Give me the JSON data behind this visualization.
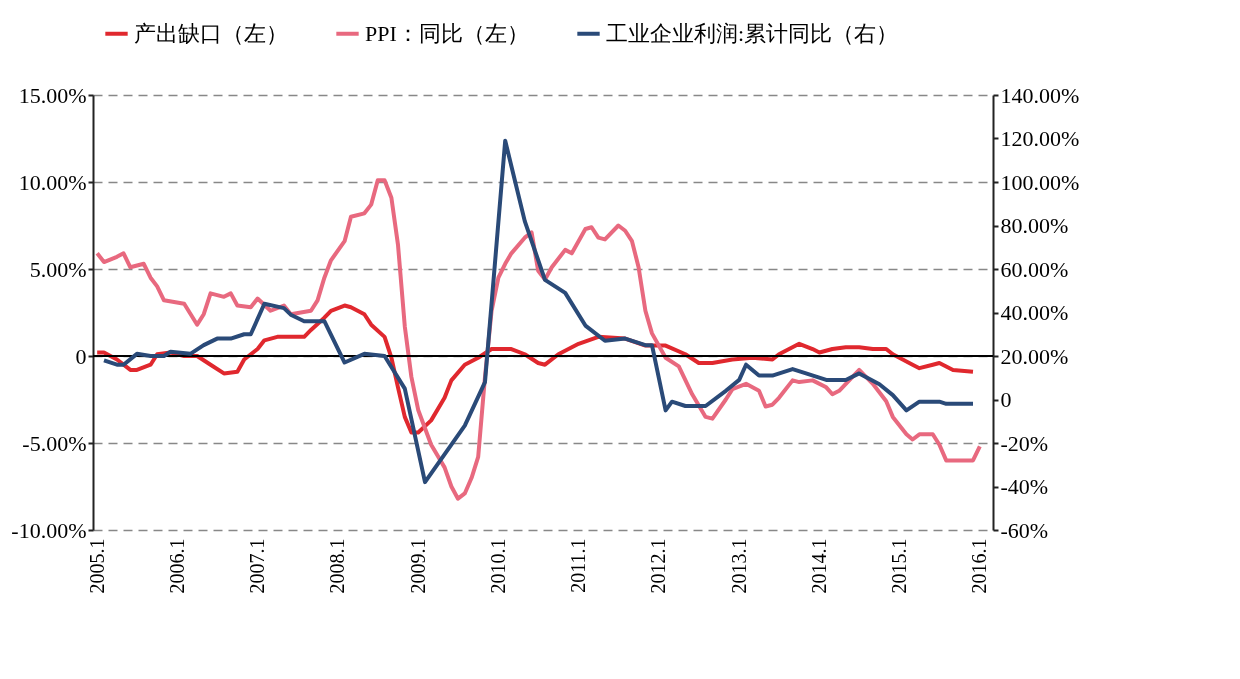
{
  "chart_data": {
    "type": "line",
    "xlim": [
      "2004-12-13",
      "2016-03-01"
    ],
    "xticks": [
      {
        "value": "2005-01",
        "label": "2005.1"
      },
      {
        "value": "2006-01",
        "label": "2006.1"
      },
      {
        "value": "2007-01",
        "label": "2007.1"
      },
      {
        "value": "2008-01",
        "label": "2008.1"
      },
      {
        "value": "2009-01",
        "label": "2009.1"
      },
      {
        "value": "2010-01",
        "label": "2010.1"
      },
      {
        "value": "2011-01",
        "label": "2011.1"
      },
      {
        "value": "2012-01",
        "label": "2012.1"
      },
      {
        "value": "2013-01",
        "label": "2013.1"
      },
      {
        "value": "2014-01",
        "label": "2014.1"
      },
      {
        "value": "2015-01",
        "label": "2015.1"
      },
      {
        "value": "2016-01",
        "label": "2016.1"
      }
    ],
    "ylim": [
      -10,
      15
    ],
    "yticks": [
      {
        "value": -10,
        "label": "-10.00%"
      },
      {
        "value": -5,
        "label": "-5.00%"
      },
      0,
      {
        "value": 5,
        "label": "5.00%"
      },
      {
        "value": 10,
        "label": "10.00%"
      },
      {
        "value": 15,
        "label": "15.00%"
      }
    ],
    "y2lim": [
      -60,
      140
    ],
    "y2ticks": [
      {
        "value": -60,
        "label": "-60%"
      },
      {
        "value": -40,
        "label": "-40%"
      },
      {
        "value": -20,
        "label": "-20%"
      },
      0,
      {
        "value": 20,
        "label": "20.00%"
      },
      {
        "value": 40,
        "label": "40.00%"
      },
      {
        "value": 60,
        "label": "60.00%"
      },
      {
        "value": 80,
        "label": "80.00%"
      },
      {
        "value": 100,
        "label": "100.00%"
      },
      {
        "value": 120,
        "label": "120.00%"
      },
      {
        "value": 140,
        "label": "140.00%"
      }
    ],
    "grid": "y",
    "legend": "top",
    "ref_lines": [
      {
        "axis": "y",
        "value": 0,
        "color": "#000000"
      }
    ],
    "series": [
      {
        "name": "产出缺口（左）",
        "color": "#e0282e",
        "x": [
          "2005-01",
          "2005-02",
          "2005-04",
          "2005-06",
          "2005-07",
          "2005-09",
          "2005-10",
          "2005-12",
          "2006-02",
          "2006-04",
          "2006-06",
          "2006-08",
          "2006-10",
          "2006-11",
          "2007-01",
          "2007-02",
          "2007-04",
          "2007-07",
          "2007-08",
          "2007-09",
          "2007-11",
          "2007-12",
          "2008-02",
          "2008-03",
          "2008-05",
          "2008-06",
          "2008-08",
          "2008-09",
          "2008-10",
          "2008-11",
          "2008-12",
          "2009-01",
          "2009-03",
          "2009-05",
          "2009-06",
          "2009-08",
          "2009-10",
          "2009-12",
          "2010-03",
          "2010-05",
          "2010-07",
          "2010-08",
          "2010-10",
          "2011-01",
          "2011-04",
          "2011-08",
          "2011-11",
          "2012-02",
          "2012-05",
          "2012-07",
          "2012-09",
          "2012-12",
          "2013-03",
          "2013-06",
          "2013-07",
          "2013-10",
          "2013-12",
          "2014-01",
          "2014-03",
          "2014-05",
          "2014-07",
          "2014-09",
          "2014-11",
          "2014-12",
          "2015-03",
          "2015-04",
          "2015-06",
          "2015-07",
          "2015-09",
          "2015-12"
        ],
        "values": [
          0.2,
          0.2,
          -0.2,
          -0.8,
          -0.8,
          -0.5,
          0.1,
          0.2,
          0.0,
          0.0,
          -0.5,
          -1.0,
          -0.9,
          -0.2,
          0.4,
          0.9,
          1.1,
          1.1,
          1.1,
          1.5,
          2.2,
          2.6,
          2.9,
          2.8,
          2.4,
          1.8,
          1.1,
          -0.1,
          -1.8,
          -3.5,
          -4.4,
          -4.4,
          -3.7,
          -2.4,
          -1.4,
          -0.5,
          -0.1,
          0.4,
          0.4,
          0.1,
          -0.4,
          -0.5,
          0.1,
          0.7,
          1.1,
          1.0,
          0.6,
          0.6,
          0.1,
          -0.4,
          -0.4,
          -0.2,
          -0.1,
          -0.2,
          0.1,
          0.7,
          0.4,
          0.2,
          0.4,
          0.5,
          0.5,
          0.4,
          0.4,
          0.1,
          -0.5,
          -0.7,
          -0.5,
          -0.4,
          -0.8,
          -0.9
        ]
      },
      {
        "name": "PPI：同比（左）",
        "color": "#e8697f",
        "x": [
          "2005-01",
          "2005-02",
          "2005-04",
          "2005-05",
          "2005-06",
          "2005-08",
          "2005-09",
          "2005-10",
          "2005-11",
          "2006-02",
          "2006-04",
          "2006-05",
          "2006-06",
          "2006-08",
          "2006-09",
          "2006-10",
          "2006-12",
          "2007-01",
          "2007-03",
          "2007-05",
          "2007-06",
          "2007-09",
          "2007-10",
          "2007-11",
          "2007-12",
          "2008-02",
          "2008-03",
          "2008-05",
          "2008-06",
          "2008-07",
          "2008-08",
          "2008-09",
          "2008-10",
          "2008-11",
          "2008-12",
          "2009-01",
          "2009-03",
          "2009-05",
          "2009-06",
          "2009-07",
          "2009-08",
          "2009-09",
          "2009-10",
          "2009-11",
          "2009-12",
          "2010-01",
          "2010-02",
          "2010-03",
          "2010-05",
          "2010-06",
          "2010-07",
          "2010-08",
          "2010-09",
          "2010-11",
          "2010-12",
          "2011-02",
          "2011-03",
          "2011-04",
          "2011-05",
          "2011-07",
          "2011-08",
          "2011-09",
          "2011-10",
          "2011-11",
          "2011-12",
          "2012-02",
          "2012-04",
          "2012-06",
          "2012-08",
          "2012-09",
          "2012-11",
          "2012-12",
          "2013-02",
          "2013-04",
          "2013-05",
          "2013-06",
          "2013-07",
          "2013-09",
          "2013-10",
          "2013-12",
          "2014-02",
          "2014-03",
          "2014-04",
          "2014-07",
          "2014-09",
          "2014-11",
          "2014-12",
          "2015-02",
          "2015-03",
          "2015-04",
          "2015-06",
          "2015-07",
          "2015-08",
          "2015-12",
          "2016-01"
        ],
        "values": [
          5.9,
          5.4,
          5.7,
          5.9,
          5.1,
          5.3,
          4.5,
          4.0,
          3.2,
          3.0,
          1.8,
          2.4,
          3.6,
          3.4,
          3.6,
          2.9,
          2.8,
          3.3,
          2.6,
          2.9,
          2.4,
          2.6,
          3.2,
          4.5,
          5.5,
          6.6,
          8.0,
          8.2,
          8.7,
          10.1,
          10.1,
          9.1,
          6.4,
          1.7,
          -1.2,
          -3.1,
          -5.1,
          -6.4,
          -7.5,
          -8.2,
          -7.9,
          -7.0,
          -5.8,
          -1.2,
          2.6,
          4.5,
          5.3,
          5.9,
          6.8,
          7.1,
          4.9,
          4.4,
          5.1,
          6.1,
          5.9,
          7.3,
          7.4,
          6.8,
          6.7,
          7.5,
          7.2,
          6.6,
          5.1,
          2.6,
          1.3,
          -0.1,
          -0.6,
          -2.2,
          -3.5,
          -3.6,
          -2.5,
          -1.9,
          -1.6,
          -2.0,
          -2.9,
          -2.8,
          -2.4,
          -1.4,
          -1.5,
          -1.4,
          -1.8,
          -2.2,
          -2.0,
          -0.8,
          -1.6,
          -2.6,
          -3.5,
          -4.5,
          -4.8,
          -4.5,
          -4.5,
          -5.1,
          -6.0,
          -6.0,
          -5.2
        ]
      },
      {
        "name": "工业企业利润:累计同比（右）",
        "color": "#2a4a78",
        "axis": "y2",
        "x": [
          "2005-02",
          "2005-04",
          "2005-05",
          "2005-07",
          "2005-09",
          "2005-11",
          "2005-12",
          "2006-03",
          "2006-05",
          "2006-07",
          "2006-09",
          "2006-11",
          "2006-12",
          "2007-02",
          "2007-05",
          "2007-06",
          "2007-08",
          "2007-11",
          "2008-02",
          "2008-05",
          "2008-08",
          "2008-11",
          "2009-02",
          "2009-08",
          "2009-11",
          "2010-02",
          "2010-05",
          "2010-08",
          "2010-11",
          "2011-02",
          "2011-05",
          "2011-08",
          "2011-11",
          "2011-12",
          "2012-02",
          "2012-03",
          "2012-05",
          "2012-08",
          "2012-11",
          "2013-01",
          "2013-02",
          "2013-04",
          "2013-06",
          "2013-09",
          "2013-11",
          "2014-02",
          "2014-05",
          "2014-07",
          "2014-10",
          "2014-12",
          "2015-02",
          "2015-04",
          "2015-07",
          "2015-08",
          "2015-12"
        ],
        "values": [
          18,
          16,
          16,
          21,
          20,
          20,
          22,
          21,
          25,
          28,
          28,
          30,
          30,
          44,
          42,
          39,
          36,
          36,
          17,
          21,
          20,
          5,
          -38,
          -12,
          8,
          119,
          82,
          55,
          49,
          34,
          27,
          28,
          25,
          25,
          -5,
          -1,
          -3,
          -3,
          4,
          9,
          16,
          11,
          11,
          14,
          12,
          9,
          9,
          12,
          7,
          2,
          -5,
          -1,
          -1,
          -2,
          -2
        ]
      }
    ]
  }
}
